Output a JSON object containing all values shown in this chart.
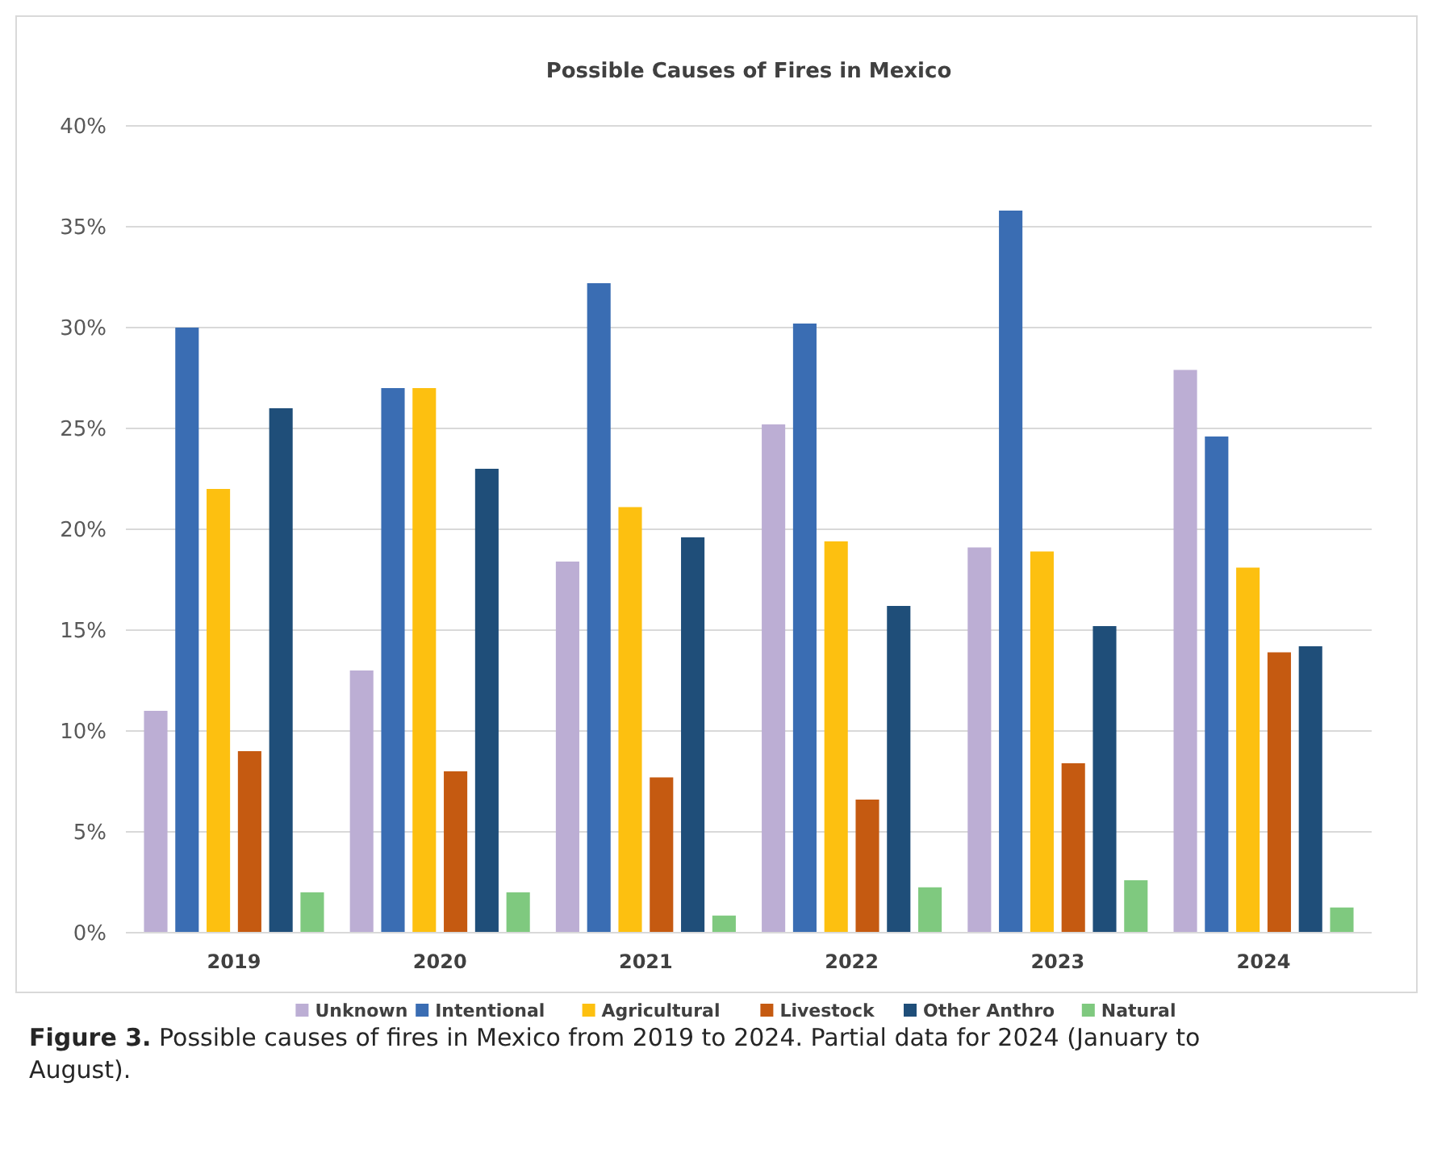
{
  "chart_data": {
    "type": "bar",
    "title": "Possible Causes of Fires in Mexico",
    "categories": [
      "2019",
      "2020",
      "2021",
      "2022",
      "2023",
      "2024"
    ],
    "series": [
      {
        "name": "Unknown",
        "color": "#bcaed4",
        "values": [
          11,
          13,
          18.4,
          25.2,
          19.1,
          27.9
        ]
      },
      {
        "name": "Intentional",
        "color": "#3a6db3",
        "values": [
          30,
          27,
          32.2,
          30.2,
          35.8,
          24.6
        ]
      },
      {
        "name": "Agricultural",
        "color": "#fdc010",
        "values": [
          22,
          27,
          21.1,
          19.4,
          18.9,
          18.1
        ]
      },
      {
        "name": "Livestock",
        "color": "#c55a11",
        "values": [
          9,
          8,
          7.7,
          6.6,
          8.4,
          13.9
        ]
      },
      {
        "name": "Other Anthro",
        "color": "#1f4e79",
        "values": [
          26,
          23,
          19.6,
          16.2,
          15.2,
          14.2
        ]
      },
      {
        "name": "Natural",
        "color": "#7fc97f",
        "values": [
          2,
          2,
          0.85,
          2.25,
          2.6,
          1.25
        ]
      }
    ],
    "ylim": [
      0,
      40
    ],
    "yticks": [
      {
        "value": 0,
        "label": "0%"
      },
      {
        "value": 5,
        "label": "5%"
      },
      {
        "value": 10,
        "label": "10%"
      },
      {
        "value": 15,
        "label": "15%"
      },
      {
        "value": 20,
        "label": "20%"
      },
      {
        "value": 25,
        "label": "25%"
      },
      {
        "value": 30,
        "label": "30%"
      },
      {
        "value": 35,
        "label": "35%"
      },
      {
        "value": 40,
        "label": "40%"
      }
    ],
    "grid": "y",
    "legend": "bottom",
    "annotations": [
      "Figure 3. Possible causes of fires in Mexico from 2019 to 2024. Partial data for 2024 (January to August)."
    ]
  }
}
